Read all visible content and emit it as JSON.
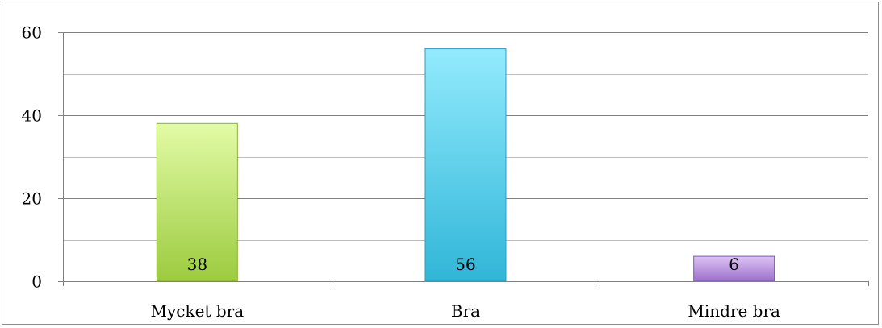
{
  "chart_data": {
    "type": "bar",
    "title": "",
    "xlabel": "",
    "ylabel": "",
    "categories": [
      "Mycket bra",
      "Bra",
      "Mindre bra"
    ],
    "values": [
      38,
      56,
      6
    ],
    "data_labels": [
      "38",
      "56",
      "6"
    ],
    "ylim": [
      0,
      60
    ],
    "y_ticks": [
      0,
      20,
      40,
      60
    ],
    "y_tick_labels": [
      "0",
      "20",
      "40",
      "60"
    ],
    "grid": true,
    "legend": "none",
    "bar_colors": [
      {
        "top": "#e2fba6",
        "bottom": "#9ccb3f",
        "stroke": "#8aae3a"
      },
      {
        "top": "#93ebfd",
        "bottom": "#30b6d8",
        "stroke": "#2d9cbc"
      },
      {
        "top": "#ddc3f4",
        "bottom": "#9c6fcb",
        "stroke": "#7e58a8"
      }
    ],
    "axis_color": "#808080",
    "grid_color": "#808080"
  }
}
